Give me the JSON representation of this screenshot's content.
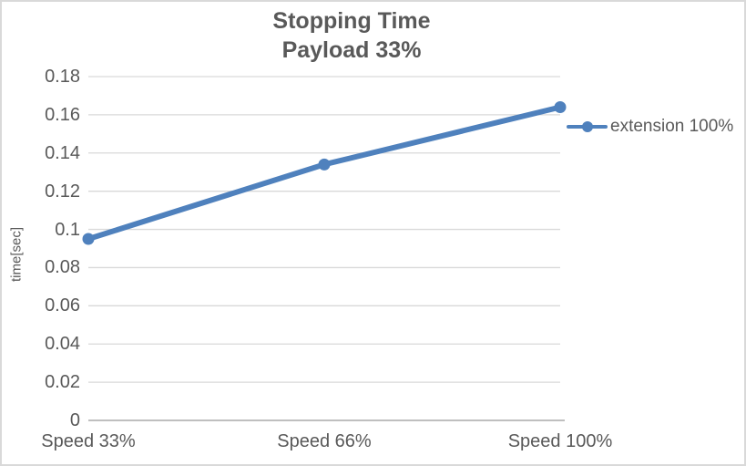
{
  "chart_data": {
    "type": "line",
    "title": "Stopping Time",
    "subtitle": "Payload 33%",
    "categories": [
      "Speed 33%",
      "Speed 66%",
      "Speed 100%"
    ],
    "series": [
      {
        "name": "extension 100%",
        "color": "#4F81BD",
        "values": [
          0.095,
          0.134,
          0.164
        ]
      }
    ],
    "xlabel": "",
    "ylabel": "time[sec]",
    "ylim": [
      0,
      0.18
    ],
    "y_ticks": [
      "0",
      "0.02",
      "0.04",
      "0.06",
      "0.08",
      "0.1",
      "0.12",
      "0.14",
      "0.16",
      "0.18"
    ],
    "grid": true,
    "legend_position": "right"
  },
  "style_colors": {
    "series_line": "#4F81BD",
    "gridline": "#d9d9d9",
    "axis_line": "#bfbfbf",
    "text": "#595959",
    "chart_border": "#d9d9d9",
    "background": "#ffffff"
  }
}
